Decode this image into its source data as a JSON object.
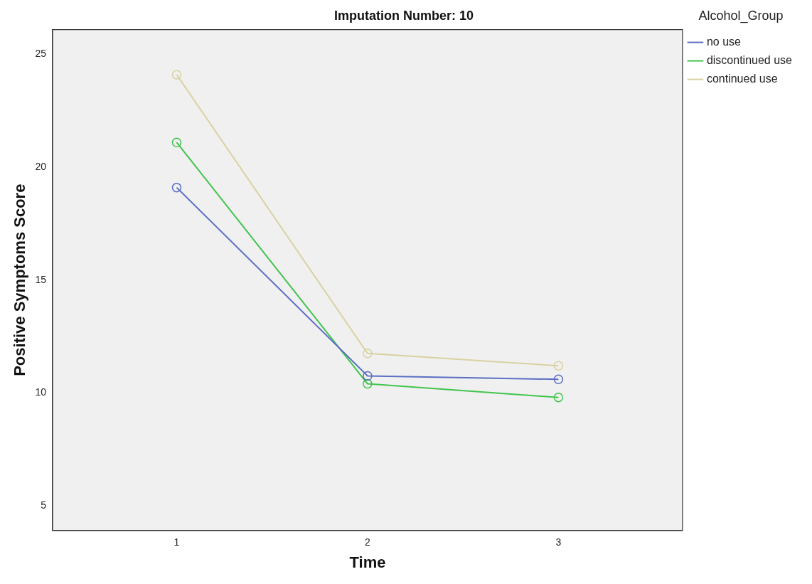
{
  "chart_data": {
    "type": "line",
    "title": "Imputation Number: 10",
    "xlabel": "Time",
    "ylabel": "Positive Symptoms Score",
    "legend_title": "Alcohol_Group",
    "x": [
      1,
      2,
      3
    ],
    "series": [
      {
        "name": "no use",
        "color": "#5b6ec4",
        "values": [
          19.1,
          10.75,
          10.6
        ]
      },
      {
        "name": "discontinued use",
        "color": "#42c44e",
        "values": [
          21.1,
          10.4,
          9.8
        ]
      },
      {
        "name": "continued use",
        "color": "#d9d1a0",
        "values": [
          24.1,
          11.75,
          11.2
        ]
      }
    ],
    "xlim": [
      0.35,
      3.65
    ],
    "xticks": [
      1,
      2,
      3
    ],
    "ylim": [
      3.9,
      26.1
    ],
    "yticks": [
      5,
      10,
      15,
      20,
      25
    ],
    "grid": false,
    "legend": "top right",
    "marker": "circle",
    "line_style": "solid"
  }
}
